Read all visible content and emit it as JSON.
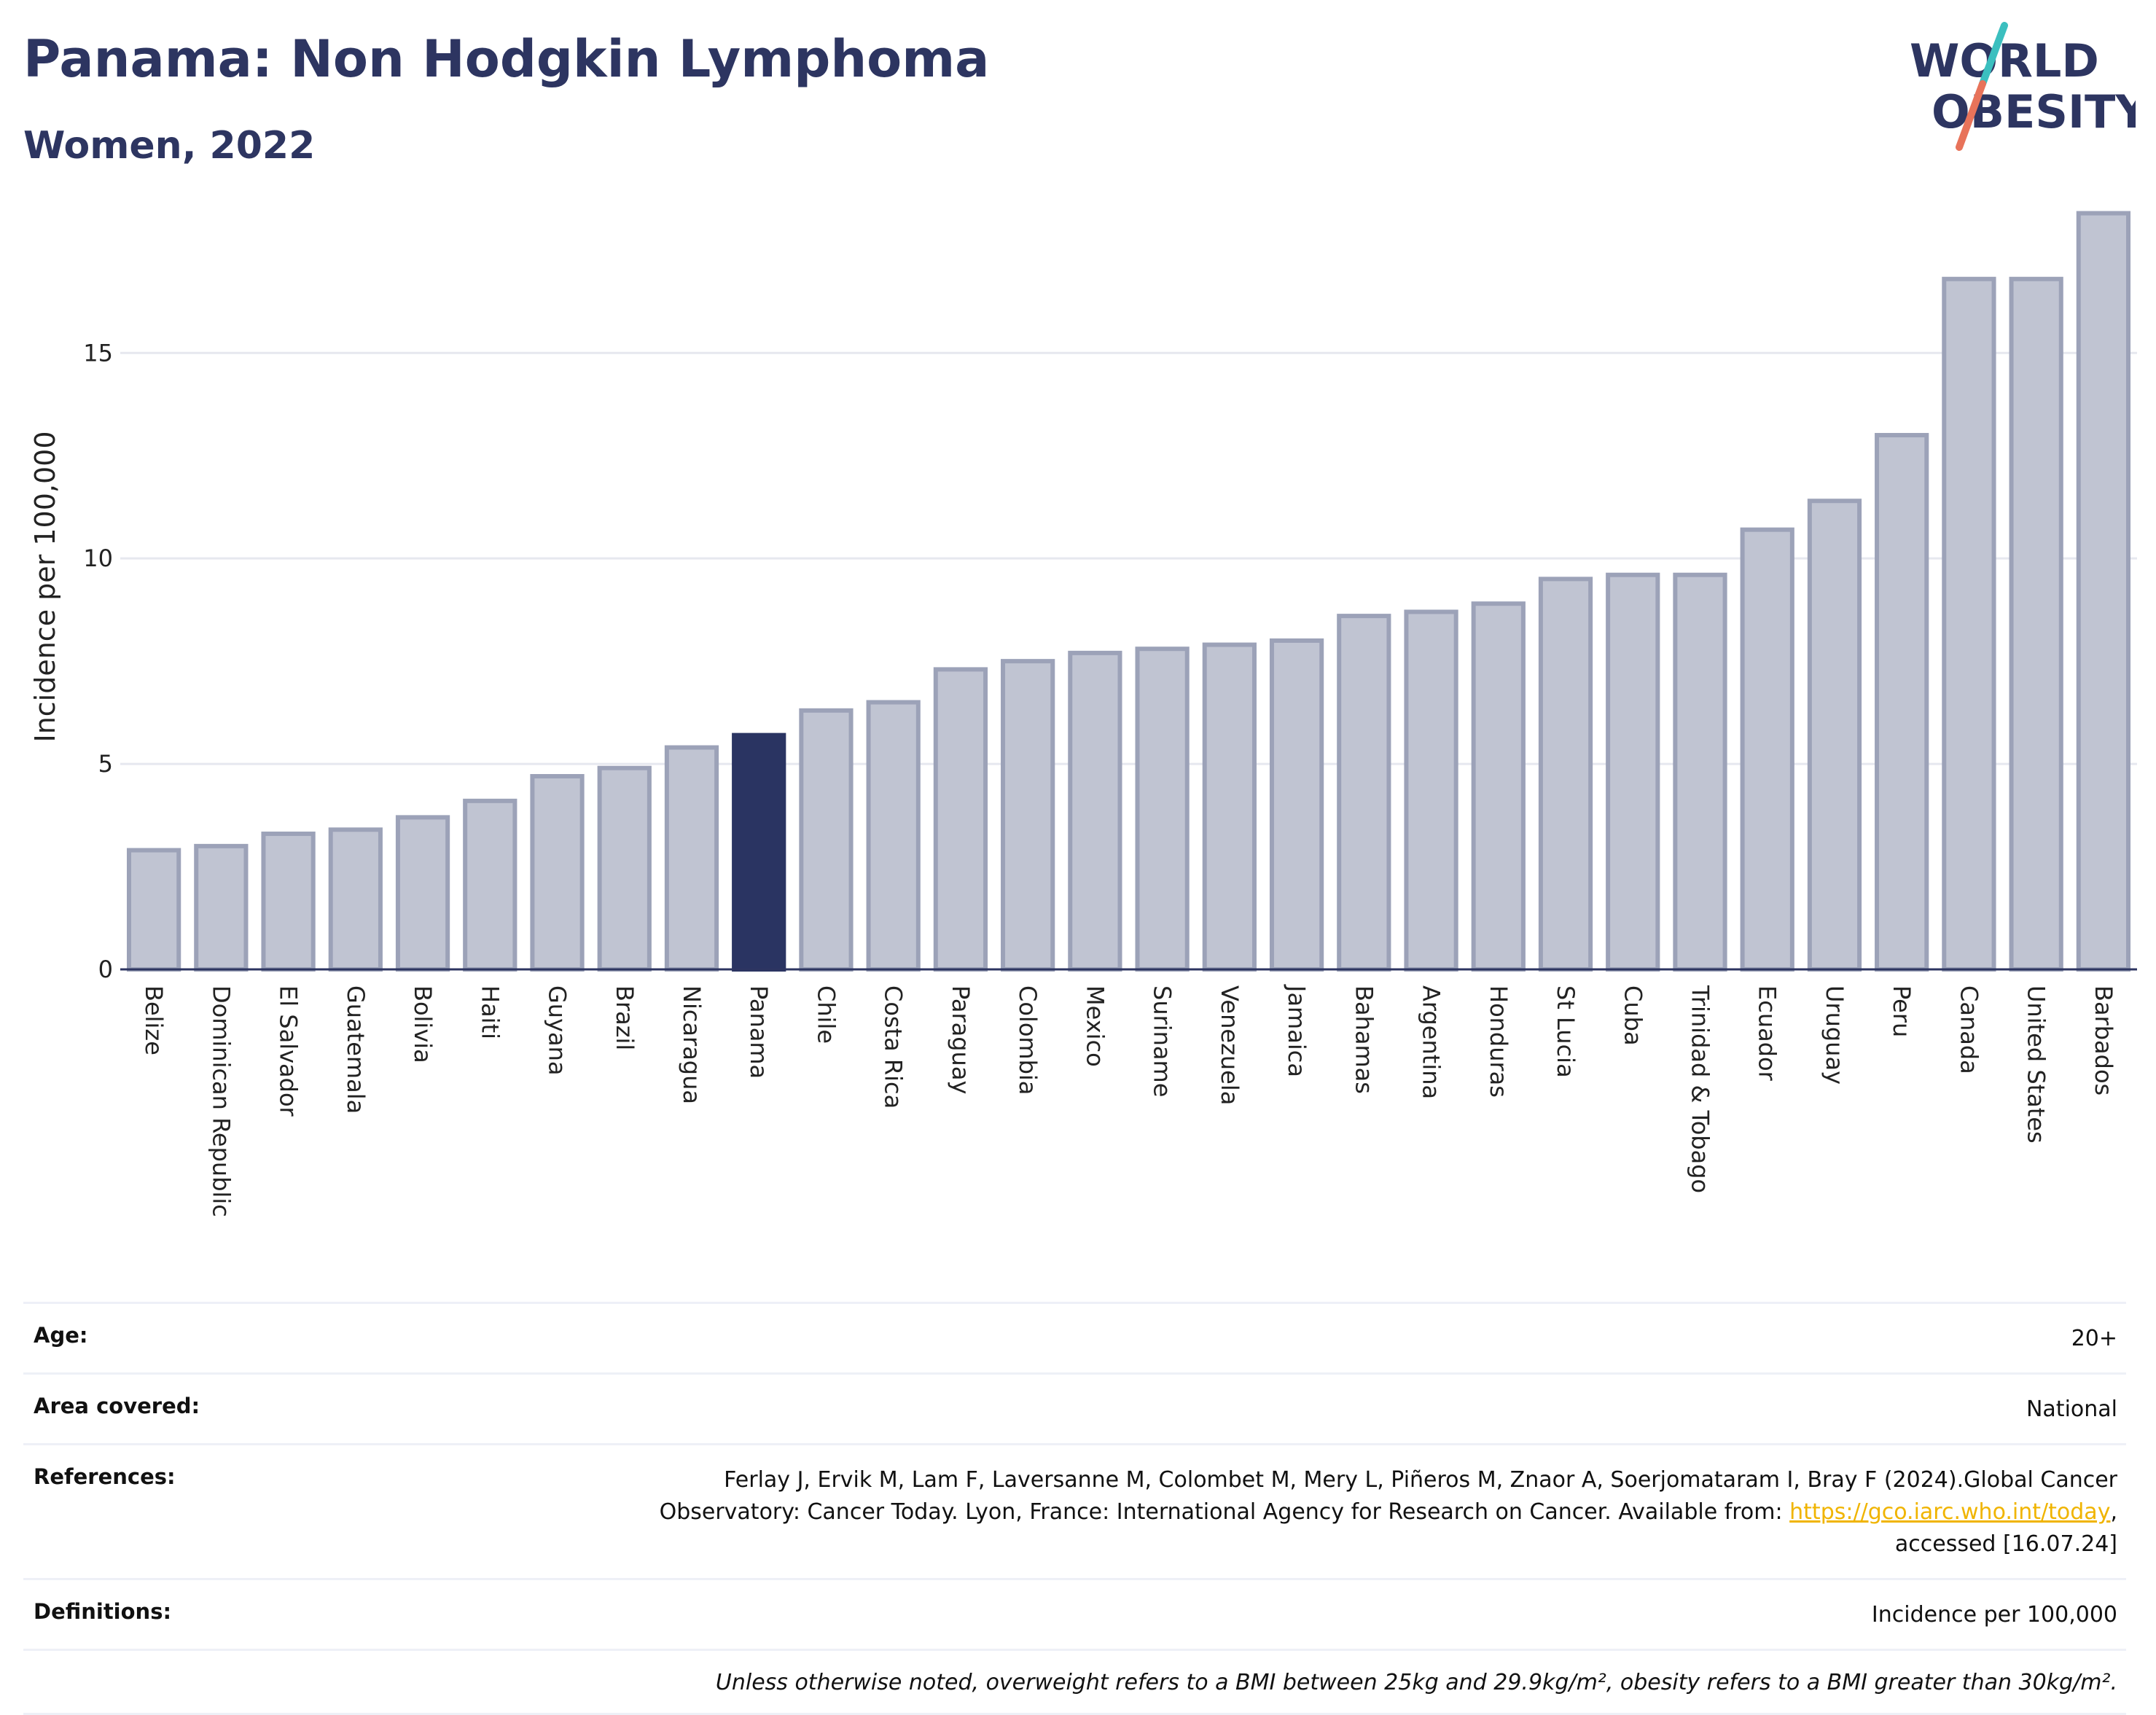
{
  "header": {
    "title": "Panama: Non Hodgkin Lymphoma",
    "subtitle": "Women, 2022"
  },
  "logo": {
    "line1": "WORLD",
    "line2": "OBESITY",
    "colors": {
      "text": "#2d3561",
      "slash_top": "#3bbfbf",
      "slash_bottom": "#e8735a"
    }
  },
  "chart_data": {
    "type": "bar",
    "title": "Panama: Non Hodgkin Lymphoma",
    "subtitle": "Women, 2022",
    "xlabel": "",
    "ylabel": "Incidence per 100,000",
    "ylim": [
      0,
      18.8
    ],
    "yticks": [
      0,
      5,
      10,
      15
    ],
    "grid": true,
    "highlight": "Panama",
    "colors": {
      "bar": "#c0c4d2",
      "bar_border": "#9ca2b8",
      "highlight": "#2a3462"
    },
    "categories": [
      "Belize",
      "Dominican Republic",
      "El Salvador",
      "Guatemala",
      "Bolivia",
      "Haiti",
      "Guyana",
      "Brazil",
      "Nicaragua",
      "Panama",
      "Chile",
      "Costa Rica",
      "Paraguay",
      "Colombia",
      "Mexico",
      "Suriname",
      "Venezuela",
      "Jamaica",
      "Bahamas",
      "Argentina",
      "Honduras",
      "St Lucia",
      "Cuba",
      "Trinidad & Tobago",
      "Ecuador",
      "Uruguay",
      "Peru",
      "Canada",
      "United States",
      "Barbados"
    ],
    "values": [
      2.9,
      3.0,
      3.3,
      3.4,
      3.7,
      4.1,
      4.7,
      4.9,
      5.4,
      5.7,
      6.3,
      6.5,
      7.3,
      7.5,
      7.7,
      7.8,
      7.9,
      8.0,
      8.6,
      8.7,
      8.9,
      9.5,
      9.6,
      9.6,
      10.7,
      11.4,
      13.0,
      16.8,
      16.8,
      18.4
    ]
  },
  "info": {
    "age_label": "Age:",
    "age_value": "20+",
    "area_label": "Area covered:",
    "area_value": "National",
    "references_label": "References:",
    "references_line1": "Ferlay J, Ervik M, Lam F, Laversanne M, Colombet M, Mery L, Piñeros M, Znaor A, Soerjomataram I, Bray F (2024).Global Cancer",
    "references_line2_pre": "Observatory: Cancer Today. Lyon, France: International Agency for Research on Cancer. Available from: ",
    "references_link": "https://gco.iarc.who.int/today",
    "references_line2_post": ",",
    "references_line3": "accessed [16.07.24]",
    "definitions_label": "Definitions:",
    "definitions_value": "Incidence per 100,000",
    "note": "Unless otherwise noted, overweight refers to a BMI between 25kg and 29.9kg/m², obesity refers to a BMI greater than 30kg/m²."
  }
}
